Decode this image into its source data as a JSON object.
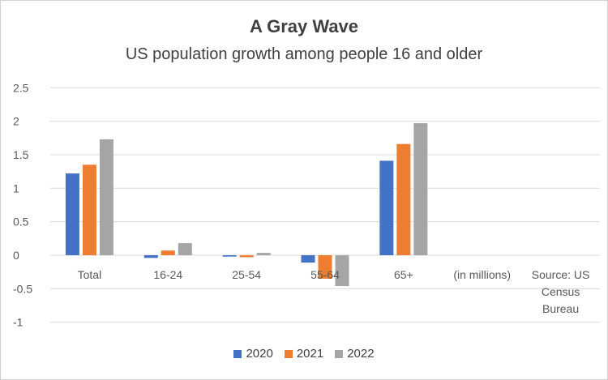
{
  "chart_data": {
    "type": "bar",
    "title": "A Gray Wave",
    "subtitle": "US population growth among people 16 and older",
    "categories": [
      "Total",
      "16-24",
      "25-54",
      "55-64",
      "65+",
      "(in millions)",
      "Source: US Census Bureau"
    ],
    "series": [
      {
        "name": "2020",
        "color": "#4472C4",
        "values": [
          1.22,
          -0.04,
          -0.02,
          -0.11,
          1.41,
          null,
          null
        ]
      },
      {
        "name": "2021",
        "color": "#ED7D31",
        "values": [
          1.35,
          0.07,
          -0.03,
          -0.35,
          1.66,
          null,
          null
        ]
      },
      {
        "name": "2022",
        "color": "#A5A5A5",
        "values": [
          1.73,
          0.18,
          0.035,
          -0.46,
          1.97,
          null,
          null
        ]
      }
    ],
    "yticks": [
      "2.5",
      "2",
      "1.5",
      "1",
      "0.5",
      "0",
      "-0.5",
      "-1"
    ],
    "ylim": [
      -1,
      2.5
    ],
    "grid": true,
    "legend": "bottom"
  }
}
